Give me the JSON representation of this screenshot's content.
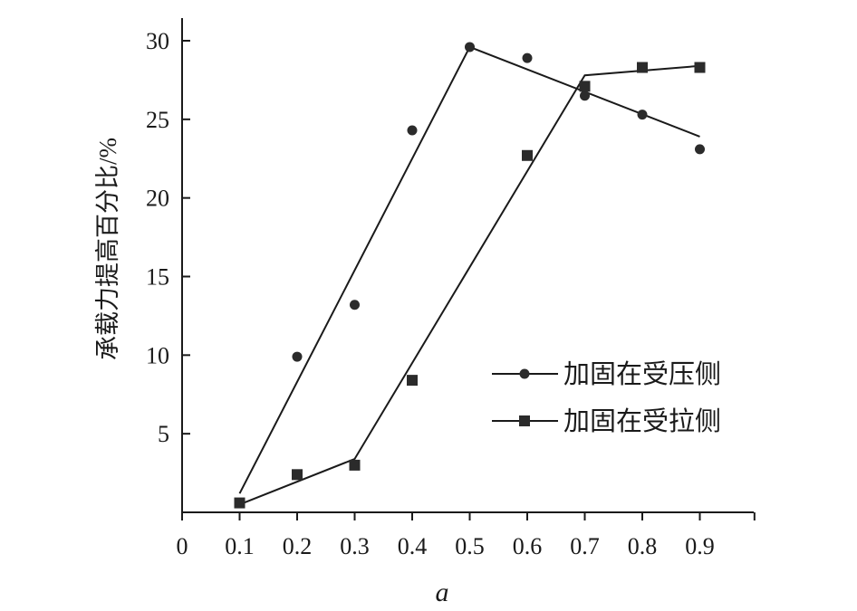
{
  "chart_data": {
    "type": "scatter",
    "xlabel": "a",
    "ylabel": "承载力提高百分比/%",
    "xlim": [
      0,
      1.0
    ],
    "ylim": [
      0,
      30
    ],
    "xticks": [
      "0",
      "0.1",
      "0.2",
      "0.3",
      "0.4",
      "0.5",
      "0.6",
      "0.7",
      "0.8",
      "0.9"
    ],
    "yticks": [
      "5",
      "10",
      "15",
      "20",
      "25",
      "30"
    ],
    "legend_position": "center-right",
    "series": [
      {
        "name": "加固在受压侧",
        "marker": "circle",
        "color": "#2b2b2b",
        "points": [
          {
            "x": 0.1,
            "y": 0.6
          },
          {
            "x": 0.2,
            "y": 9.9
          },
          {
            "x": 0.3,
            "y": 13.2
          },
          {
            "x": 0.4,
            "y": 24.3
          },
          {
            "x": 0.5,
            "y": 29.6
          },
          {
            "x": 0.6,
            "y": 28.9
          },
          {
            "x": 0.7,
            "y": 26.5
          },
          {
            "x": 0.8,
            "y": 25.3
          },
          {
            "x": 0.9,
            "y": 23.1
          }
        ],
        "fit_line": [
          {
            "x": 0.1,
            "y": 1.2
          },
          {
            "x": 0.5,
            "y": 29.6
          },
          {
            "x": 0.9,
            "y": 23.9
          }
        ]
      },
      {
        "name": "加固在受拉侧",
        "marker": "square",
        "color": "#2b2b2b",
        "points": [
          {
            "x": 0.1,
            "y": 0.6
          },
          {
            "x": 0.2,
            "y": 2.4
          },
          {
            "x": 0.3,
            "y": 3.0
          },
          {
            "x": 0.4,
            "y": 8.4
          },
          {
            "x": 0.6,
            "y": 22.7
          },
          {
            "x": 0.7,
            "y": 27.1
          },
          {
            "x": 0.8,
            "y": 28.3
          },
          {
            "x": 0.9,
            "y": 28.3
          }
        ],
        "fit_line": [
          {
            "x": 0.1,
            "y": 0.5
          },
          {
            "x": 0.3,
            "y": 3.4
          },
          {
            "x": 0.7,
            "y": 27.8
          },
          {
            "x": 0.9,
            "y": 28.4
          }
        ]
      }
    ]
  }
}
